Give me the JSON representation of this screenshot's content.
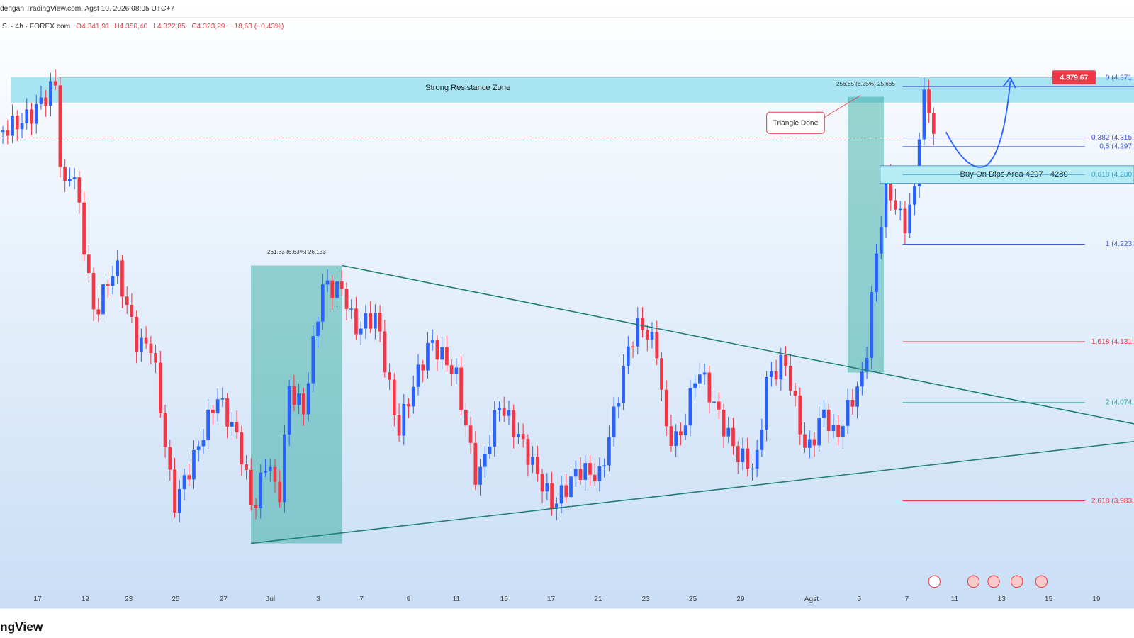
{
  "header": {
    "source": "dengan TradingView.com, Agst 10, 2026 08:05 UTC+7",
    "symbol": ".S. · 4h · FOREX.com",
    "open": "O4.341,91",
    "high": "H4.350,40",
    "low": "L4.322,85",
    "close": "C4.323,29",
    "change": "−18,63 (−0,43%)"
  },
  "annotations": {
    "resistance": "Strong Resistance Zone",
    "measure_right": "256,65 (6,25%) 25.665",
    "triangle_done": "Triangle Done",
    "measure_left": "261,33 (6,63%) 26.133",
    "buy_area": "Buy On Dips Area 4297 - 4280",
    "price_label": "4.379,67"
  },
  "fib_levels": [
    "0 (4.371,",
    "0,382 (4.315,",
    "0,5 (4.297,",
    "0,618 (4.280,",
    "1 (4.223,",
    "1,618 (4.131,",
    "2 (4.074,",
    "2,618 (3.983,"
  ],
  "x_axis": [
    "17",
    "19",
    "23",
    "25",
    "27",
    "Jul",
    "3",
    "7",
    "9",
    "11",
    "15",
    "17",
    "21",
    "23",
    "25",
    "29",
    "Agst",
    "5",
    "7",
    "11",
    "13",
    "15",
    "19"
  ],
  "footer": {
    "logo": "ngView"
  }
}
